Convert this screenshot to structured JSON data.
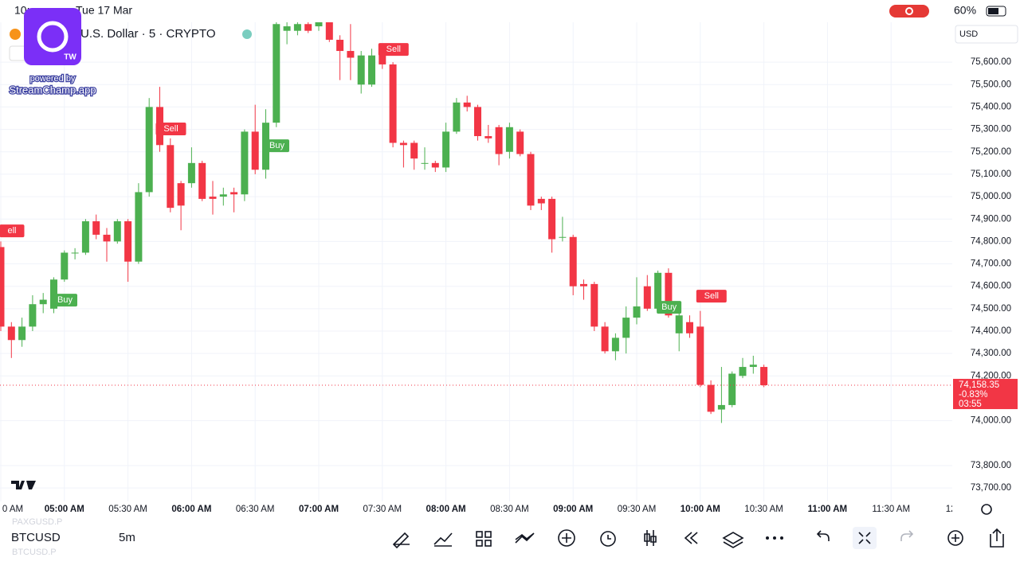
{
  "status_bar": {
    "time": "10:",
    "date": "Tue 17 Mar",
    "battery": "60%"
  },
  "overlay": {
    "badge": "TW",
    "powered": "powered by",
    "brand": "StreamChamp.app"
  },
  "symbol_title": "U.S. Dollar · 5 · CRYPTO",
  "currency": "USD",
  "chart_data": {
    "type": "candlestick",
    "up_color": "#4cb050",
    "down_color": "#f23645",
    "ylim": [
      73640,
      75778
    ],
    "yticks": [
      {
        "value": 75600,
        "label": "75,600.00"
      },
      {
        "value": 75500,
        "label": "75,500.00"
      },
      {
        "value": 75400,
        "label": "75,400.00"
      },
      {
        "value": 75300,
        "label": "75,300.00"
      },
      {
        "value": 75200,
        "label": "75,200.00"
      },
      {
        "value": 75100,
        "label": "75,100.00"
      },
      {
        "value": 75000,
        "label": "75,000.00"
      },
      {
        "value": 74900,
        "label": "74,900.00"
      },
      {
        "value": 74800,
        "label": "74,800.00"
      },
      {
        "value": 74700,
        "label": "74,700.00"
      },
      {
        "value": 74600,
        "label": "74,600.00"
      },
      {
        "value": 74500,
        "label": "74,500.00"
      },
      {
        "value": 74400,
        "label": "74,400.00"
      },
      {
        "value": 74300,
        "label": "74,300.00"
      },
      {
        "value": 74200,
        "label": "74,200.00"
      },
      {
        "value": 74000,
        "label": "74,000.00"
      },
      {
        "value": 73800,
        "label": "73,800.00"
      },
      {
        "value": 73700,
        "label": "73,700.00"
      }
    ],
    "xticks": [
      {
        "value": 0,
        "label": "0 AM"
      },
      {
        "value": 6,
        "label": "05:00 AM"
      },
      {
        "value": 12,
        "label": "05:30 AM"
      },
      {
        "value": 18,
        "label": "06:00 AM"
      },
      {
        "value": 24,
        "label": "06:30 AM"
      },
      {
        "value": 30,
        "label": "07:00 AM"
      },
      {
        "value": 36,
        "label": "07:30 AM"
      },
      {
        "value": 42,
        "label": "08:00 AM"
      },
      {
        "value": 48,
        "label": "08:30 AM"
      },
      {
        "value": 54,
        "label": "09:00 AM"
      },
      {
        "value": 60,
        "label": "09:30 AM"
      },
      {
        "value": 66,
        "label": "10:00 AM"
      },
      {
        "value": 72,
        "label": "10:30 AM"
      },
      {
        "value": 78,
        "label": "11:00 AM"
      },
      {
        "value": 84,
        "label": "11:30 AM"
      },
      {
        "value": 90,
        "label": "12:0"
      }
    ],
    "open": [
      74775,
      74420,
      74360,
      74420,
      74520,
      74500,
      74630,
      74750,
      74750,
      74890,
      74830,
      74800,
      74890,
      74710,
      75020,
      75400,
      75230,
      75060,
      75060,
      75150,
      75000,
      75000,
      75020,
      75010,
      75290,
      75120,
      75330,
      75740,
      75740,
      75770,
      75760,
      75790,
      75700,
      75650,
      75500,
      75500,
      75630,
      75590,
      75240,
      75240,
      75150,
      75150,
      75130,
      75290,
      75420,
      75400,
      75270,
      75310,
      75200,
      75290,
      75190,
      74990,
      74990,
      74820,
      74820,
      74610,
      74610,
      74420,
      74310,
      74370,
      74460,
      74600,
      74500,
      74660,
      74390,
      74440,
      74420,
      74160,
      74050,
      74070,
      74200,
      74240,
      74240
    ],
    "high": [
      74800,
      74440,
      74460,
      74560,
      74570,
      74640,
      74760,
      74770,
      74900,
      74920,
      74860,
      74900,
      74900,
      75060,
      75440,
      75490,
      75260,
      75070,
      75220,
      75160,
      75070,
      75040,
      75040,
      75300,
      75410,
      75390,
      75790,
      75790,
      75780,
      75790,
      75830,
      75800,
      75720,
      75770,
      75650,
      75660,
      75660,
      75600,
      75250,
      75250,
      75220,
      75160,
      75330,
      75440,
      75450,
      75410,
      75320,
      75320,
      75330,
      75300,
      75200,
      75000,
      75000,
      74910,
      74830,
      74630,
      74620,
      74440,
      74390,
      74510,
      74640,
      74650,
      74670,
      74680,
      74480,
      74470,
      74490,
      74180,
      74240,
      74220,
      74280,
      74290,
      74250
    ],
    "low": [
      74400,
      74280,
      74330,
      74400,
      74480,
      74480,
      74620,
      74720,
      74740,
      74810,
      74710,
      74790,
      74620,
      74700,
      75000,
      75200,
      74930,
      74850,
      75040,
      74980,
      74920,
      74960,
      74930,
      74980,
      75100,
      75080,
      75310,
      75680,
      75720,
      75730,
      75740,
      75690,
      75520,
      75520,
      75460,
      75490,
      75570,
      75220,
      75130,
      75120,
      75120,
      75110,
      75110,
      75280,
      75380,
      75250,
      75240,
      75140,
      75170,
      75180,
      74940,
      74940,
      74750,
      74800,
      74560,
      74540,
      74400,
      74300,
      74270,
      74300,
      74430,
      74490,
      74480,
      74460,
      74310,
      74370,
      74150,
      74030,
      73990,
      74060,
      74190,
      74210,
      74150
    ],
    "close": [
      74420,
      74360,
      74420,
      74520,
      74540,
      74630,
      74750,
      74750,
      74890,
      74830,
      74800,
      74890,
      74710,
      75020,
      75400,
      75230,
      74950,
      74960,
      75150,
      74990,
      74990,
      75010,
      75010,
      75290,
      75120,
      75330,
      75770,
      75760,
      75770,
      75740,
      75780,
      75700,
      75650,
      75620,
      75630,
      75630,
      75590,
      75240,
      75230,
      75170,
      75150,
      75130,
      75290,
      75420,
      75400,
      75270,
      75260,
      75190,
      75310,
      75190,
      74960,
      74970,
      74810,
      74820,
      74600,
      74600,
      74420,
      74310,
      74370,
      74460,
      74510,
      74500,
      74660,
      74470,
      74470,
      74390,
      74160,
      74040,
      74070,
      74210,
      74240,
      74250,
      74158.35
    ],
    "signals": [
      {
        "text": "ell",
        "index": 0,
        "price": 74847
      },
      {
        "text": "Buy",
        "index": 5,
        "price": 74538
      },
      {
        "text": "Sell",
        "index": 15,
        "price": 75302
      },
      {
        "text": "Buy",
        "index": 25,
        "price": 75227
      },
      {
        "text": "Sell",
        "index": 36,
        "price": 75657
      },
      {
        "text": "Buy",
        "index": 62,
        "price": 74506
      },
      {
        "text": "Sell",
        "index": 66,
        "price": 74556
      }
    ],
    "last_price": {
      "value": 74158.35,
      "label": "74,158.35"
    },
    "change": "-0.83%",
    "countdown": "03:55"
  },
  "bottom_bar": {
    "symbol_above": "PAXGUSD.P",
    "symbol": "BTCUSD",
    "symbol_below": "BTCUSD.P",
    "interval": "5m"
  }
}
